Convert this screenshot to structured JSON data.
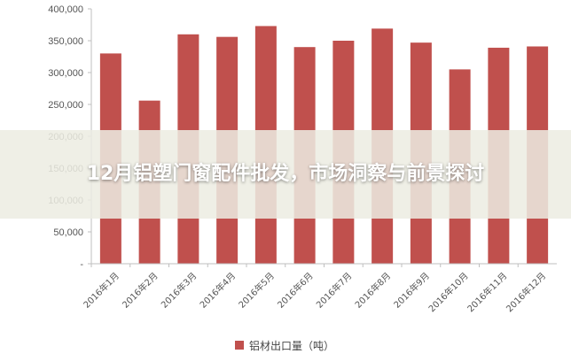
{
  "chart_data": {
    "type": "bar",
    "categories": [
      "2016年1月",
      "2016年2月",
      "2016年3月",
      "2016年4月",
      "2016年5月",
      "2016年6月",
      "2016年7月",
      "2016年8月",
      "2016年9月",
      "2016年10月",
      "2016年11月",
      "2016年12月"
    ],
    "series": [
      {
        "name": "铝材出口量（吨）",
        "values": [
          330000,
          256000,
          360000,
          356000,
          373000,
          340000,
          350000,
          369000,
          347000,
          305000,
          339000,
          341000
        ]
      }
    ],
    "yticks": [
      "-",
      "50,000",
      "100,000",
      "150,000",
      "200,000",
      "250,000",
      "300,000",
      "350,000",
      "400,000"
    ],
    "ylim": [
      0,
      400000
    ],
    "grid": false,
    "legend_position": "bottom",
    "bar_color": "#c0504d"
  },
  "overlay": {
    "title": "12月铝塑门窗配件批发，市场洞察与前景探讨"
  }
}
